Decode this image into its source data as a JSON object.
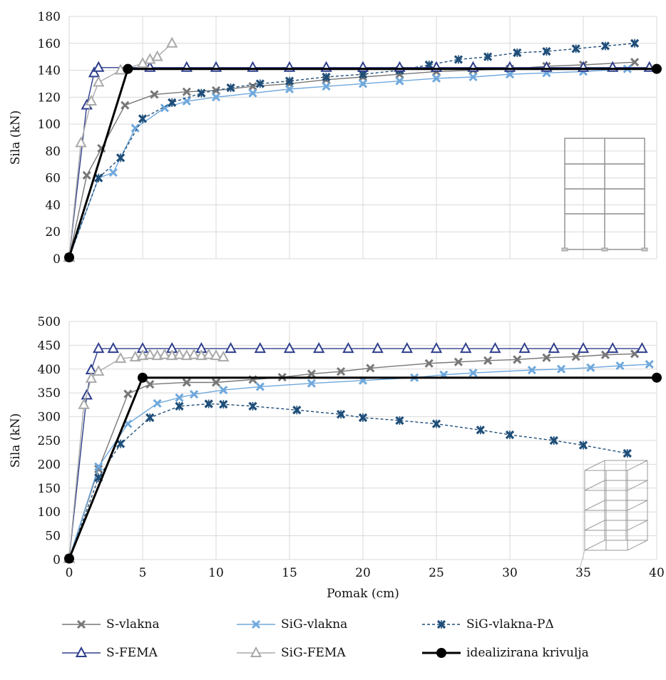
{
  "chart_data": [
    {
      "type": "line",
      "xlabel": "",
      "ylabel": "Sila (kN)",
      "xlim": [
        0,
        40
      ],
      "ylim": [
        0,
        180
      ],
      "yticks": [
        0,
        20,
        40,
        60,
        80,
        100,
        120,
        140,
        160,
        180
      ],
      "xticks": [],
      "series": [
        {
          "name": "S-vlakna",
          "x": [
            0,
            1.2,
            2.2,
            3.8,
            5.8,
            8,
            10,
            12.5,
            15,
            17.5,
            20,
            22.5,
            25,
            27.5,
            30,
            32.5,
            35,
            38.5
          ],
          "y": [
            1,
            62,
            82,
            114,
            122,
            124,
            125,
            128,
            130,
            133,
            135,
            137,
            139,
            140,
            141,
            143,
            144,
            146
          ]
        },
        {
          "name": "SiG-vlakna",
          "x": [
            0,
            2,
            3,
            4.5,
            6.5,
            8,
            10,
            12.5,
            15,
            17.5,
            20,
            22.5,
            25,
            27.5,
            30,
            32.5,
            35,
            38
          ],
          "y": [
            1,
            60,
            64,
            97,
            112,
            117,
            120,
            123,
            126,
            128,
            130,
            132,
            134,
            135,
            137,
            138,
            139,
            141
          ]
        },
        {
          "name": "SiG-vlakna-PΔ",
          "x": [
            0,
            2,
            3.5,
            5,
            7,
            9,
            11,
            13,
            15,
            17.5,
            20,
            22.5,
            24.5,
            26.5,
            28.5,
            30.5,
            32.5,
            34.5,
            36.5,
            38.5
          ],
          "y": [
            1,
            60,
            75,
            104,
            116,
            123,
            127,
            130,
            132,
            135,
            137,
            140,
            144,
            148,
            150,
            153,
            154,
            156,
            158,
            160
          ]
        },
        {
          "name": "S-FEMA",
          "x": [
            0,
            1.2,
            1.7,
            2,
            5.5,
            8,
            10,
            12.5,
            15,
            17.5,
            20,
            22.5,
            25,
            27.5,
            30,
            32.5,
            35,
            37,
            39.5
          ],
          "y": [
            1,
            114,
            138,
            142,
            142,
            142,
            142,
            142,
            142,
            142,
            142,
            142,
            142,
            142,
            142,
            142,
            142,
            142,
            142
          ]
        },
        {
          "name": "SiG-FEMA",
          "x": [
            0,
            0.8,
            1.5,
            2,
            3.5,
            5,
            5.5,
            6,
            7
          ],
          "y": [
            1,
            86,
            117,
            131,
            140,
            145,
            148,
            150,
            160
          ]
        },
        {
          "name": "idealizirana krivulja",
          "x": [
            0,
            4,
            40
          ],
          "y": [
            1,
            141,
            141
          ]
        }
      ]
    },
    {
      "type": "line",
      "xlabel": "Pomak (cm)",
      "ylabel": "Sila (kN)",
      "xlim": [
        0,
        40
      ],
      "ylim": [
        0,
        500
      ],
      "yticks": [
        0,
        50,
        100,
        150,
        200,
        250,
        300,
        350,
        400,
        450,
        500
      ],
      "xticks": [
        0,
        5,
        10,
        15,
        20,
        25,
        30,
        35,
        40
      ],
      "series": [
        {
          "name": "S-vlakna",
          "x": [
            0,
            2,
            4,
            5.5,
            8,
            10,
            12.5,
            14.5,
            16.5,
            18.5,
            20.5,
            24.5,
            26.5,
            28.5,
            30.5,
            32.5,
            34.5,
            36.5,
            38.5
          ],
          "y": [
            2,
            190,
            348,
            368,
            372,
            372,
            378,
            383,
            390,
            395,
            402,
            412,
            415,
            418,
            420,
            424,
            426,
            430,
            432
          ]
        },
        {
          "name": "SiG-vlakna",
          "x": [
            0,
            2,
            4,
            6,
            7.5,
            8.5,
            10.5,
            13,
            16.5,
            20,
            23.5,
            25.5,
            27.5,
            31.5,
            33.5,
            35.5,
            37.5,
            39.5
          ],
          "y": [
            2,
            195,
            285,
            328,
            340,
            347,
            356,
            363,
            370,
            376,
            382,
            388,
            392,
            398,
            400,
            403,
            407,
            410
          ]
        },
        {
          "name": "SiG-vlakna-PΔ",
          "x": [
            0,
            2,
            3.5,
            5.5,
            7.5,
            9.5,
            10.5,
            12.5,
            15.5,
            18.5,
            20,
            22.5,
            25,
            28,
            30,
            33,
            35,
            38
          ],
          "y": [
            2,
            172,
            243,
            298,
            322,
            327,
            326,
            322,
            314,
            305,
            298,
            292,
            285,
            272,
            262,
            250,
            240,
            223
          ]
        },
        {
          "name": "S-FEMA",
          "x": [
            0,
            1.2,
            1.5,
            2,
            3,
            5,
            7,
            9,
            11,
            13,
            15,
            17,
            19,
            21,
            23,
            25,
            27,
            29,
            31,
            33,
            35,
            37,
            39
          ],
          "y": [
            2,
            345,
            398,
            443,
            443,
            443,
            443,
            443,
            443,
            443,
            443,
            443,
            443,
            443,
            443,
            443,
            443,
            443,
            443,
            443,
            443,
            443,
            443
          ]
        },
        {
          "name": "SiG-FEMA",
          "x": [
            0,
            1,
            1.5,
            2,
            3.5,
            4.5,
            5,
            5.5,
            6,
            6.5,
            7,
            7.5,
            8,
            8.5,
            9,
            9.5,
            10,
            10.5
          ],
          "y": [
            2,
            325,
            380,
            395,
            422,
            425,
            428,
            430,
            428,
            430,
            428,
            430,
            428,
            430,
            428,
            430,
            428,
            425
          ]
        },
        {
          "name": "idealizirana krivulja",
          "x": [
            0,
            5,
            40
          ],
          "y": [
            2,
            382,
            382
          ]
        }
      ]
    }
  ],
  "series_styles": [
    {
      "name": "S-vlakna",
      "color": "#777777",
      "marker": "x-mark",
      "dash": ""
    },
    {
      "name": "SiG-vlakna",
      "color": "#6fa8dc",
      "marker": "x-mark",
      "dash": ""
    },
    {
      "name": "SiG-vlakna-PΔ",
      "color": "#1f4e79",
      "marker": "asterisk",
      "dash": "4,3"
    },
    {
      "name": "S-FEMA",
      "color": "#2e3e8c",
      "marker": "triangle",
      "dash": ""
    },
    {
      "name": "SiG-FEMA",
      "color": "#aaaaaa",
      "marker": "triangle",
      "dash": ""
    },
    {
      "name": "idealizirana krivulja",
      "color": "#000000",
      "marker": "dot",
      "dash": ""
    }
  ],
  "legend": {
    "items": [
      "S-vlakna",
      "SiG-vlakna",
      "SiG-vlakna-PΔ",
      "S-FEMA",
      "SiG-FEMA",
      "idealizirana krivulja"
    ]
  },
  "insets": [
    "2d-frame-drawing-icon",
    "3d-frame-drawing-icon"
  ]
}
